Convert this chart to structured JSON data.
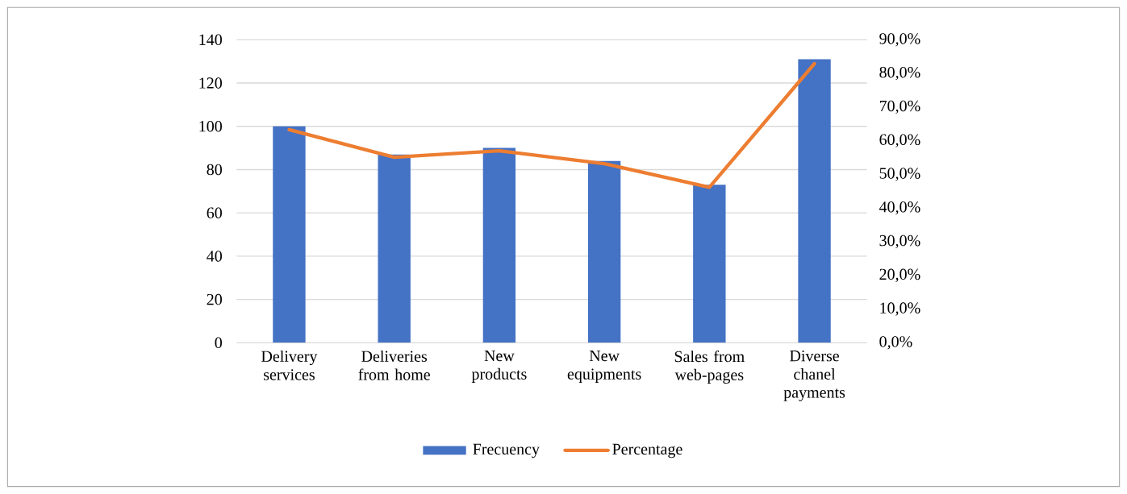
{
  "chart_data": {
    "type": "bar",
    "categories": [
      "Delivery services",
      "Deliveries from home",
      "New products",
      "New equipments",
      "Sales from web-pages",
      "Diverse chanel payments"
    ],
    "series": [
      {
        "name": "Frecuency",
        "color": "#4472c4",
        "values": [
          100,
          87,
          90,
          84,
          73,
          131
        ]
      },
      {
        "name": "Percentage",
        "type": "line",
        "axis": "y2",
        "color": "#ed7d31",
        "values": [
          63.3,
          55.1,
          57.0,
          53.2,
          46.2,
          82.9
        ]
      }
    ],
    "ylim": [
      0,
      140
    ],
    "yticks": [
      0,
      20,
      40,
      60,
      80,
      100,
      120,
      140
    ],
    "y2lim": [
      0,
      90
    ],
    "y2ticks": [
      {
        "value": 0,
        "label": "0,0%"
      },
      {
        "value": 10,
        "label": "10,0%"
      },
      {
        "value": 20,
        "label": "20,0%"
      },
      {
        "value": 30,
        "label": "30,0%"
      },
      {
        "value": 40,
        "label": "40,0%"
      },
      {
        "value": 50,
        "label": "50,0%"
      },
      {
        "value": 60,
        "label": "60,0%"
      },
      {
        "value": 70,
        "label": "70,0%"
      },
      {
        "value": 80,
        "label": "80,0%"
      },
      {
        "value": 90,
        "label": "90,0%"
      }
    ],
    "grid": "y",
    "legend": "bottom"
  }
}
